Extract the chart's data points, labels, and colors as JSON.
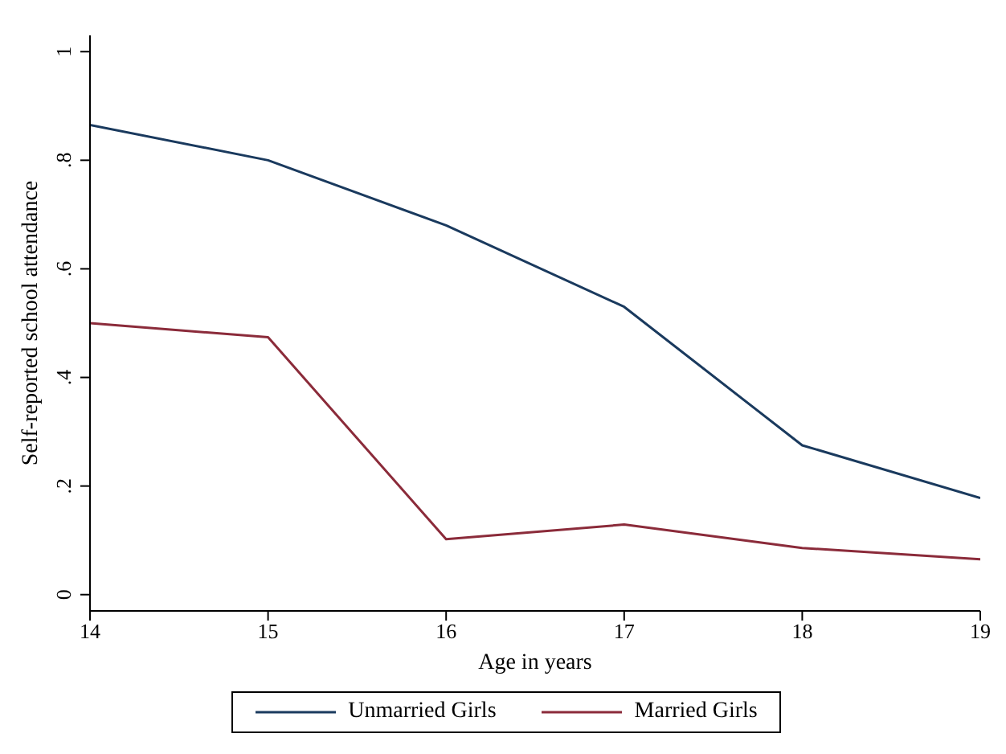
{
  "chart_data": {
    "type": "line",
    "xlabel": "Age in years",
    "ylabel": "Self-reported school attendance",
    "x": [
      14,
      15,
      16,
      17,
      18,
      19
    ],
    "series": [
      {
        "name": "Unmarried Girls",
        "color": "#1a3a5e",
        "values": [
          0.865,
          0.8,
          0.68,
          0.53,
          0.275,
          0.178
        ]
      },
      {
        "name": "Married Girls",
        "color": "#8b2b3a",
        "values": [
          0.5,
          0.474,
          0.102,
          0.129,
          0.086,
          0.065
        ]
      }
    ],
    "xlim": [
      14,
      19
    ],
    "xticks": [
      14,
      15,
      16,
      17,
      18,
      19
    ],
    "ylim": [
      -0.03,
      1.03
    ],
    "yticks": [
      {
        "value": 0,
        "label": "0"
      },
      {
        "value": 0.2,
        "label": ".2"
      },
      {
        "value": 0.4,
        "label": ".4"
      },
      {
        "value": 0.6,
        "label": ".6"
      },
      {
        "value": 0.8,
        "label": ".8"
      },
      {
        "value": 1,
        "label": "1"
      }
    ],
    "grid": false,
    "legend": "bottom",
    "marker": "none",
    "line_style": "solid"
  }
}
